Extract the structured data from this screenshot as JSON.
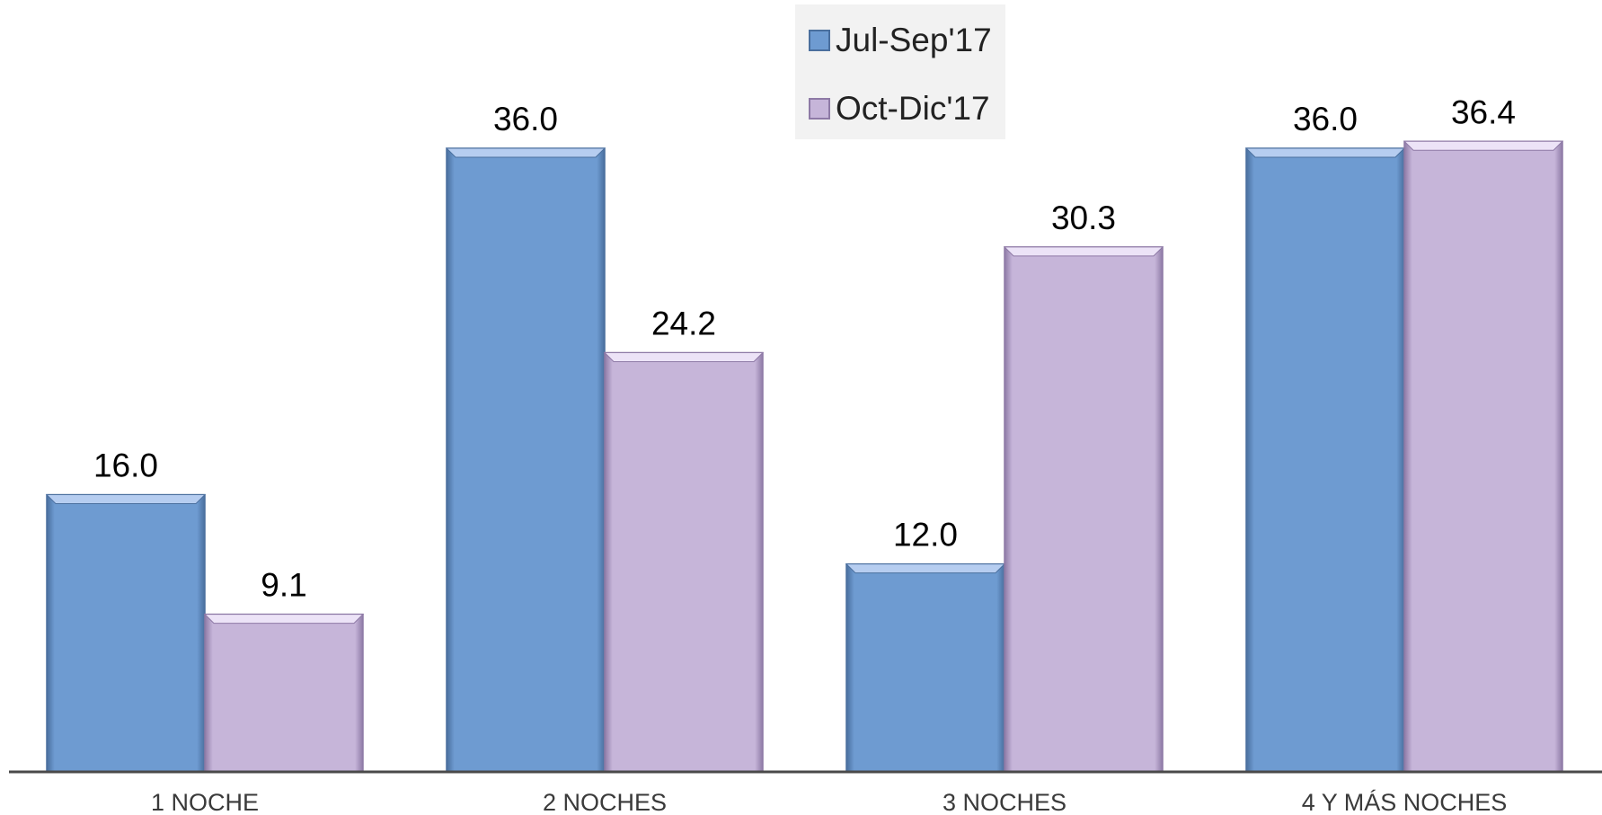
{
  "chart_data": {
    "type": "bar",
    "categories": [
      "1 NOCHE",
      "2 NOCHES",
      "3 NOCHES",
      "4 Y MÁS NOCHES"
    ],
    "series": [
      {
        "name": "Jul-Sep'17",
        "values": [
          16.0,
          36.0,
          12.0,
          36.0
        ],
        "color": "#6e9bd1"
      },
      {
        "name": "Oct-Dic'17",
        "values": [
          9.1,
          24.2,
          30.3,
          36.4
        ],
        "color": "#c6b5d9"
      }
    ],
    "data_labels": [
      [
        "16.0",
        "36.0",
        "12.0",
        "36.0"
      ],
      [
        "9.1",
        "24.2",
        "30.3",
        "36.4"
      ]
    ],
    "title": "",
    "xlabel": "",
    "ylabel": "",
    "ylim": [
      0,
      40
    ],
    "grid": false,
    "legend_position": "top-center"
  }
}
